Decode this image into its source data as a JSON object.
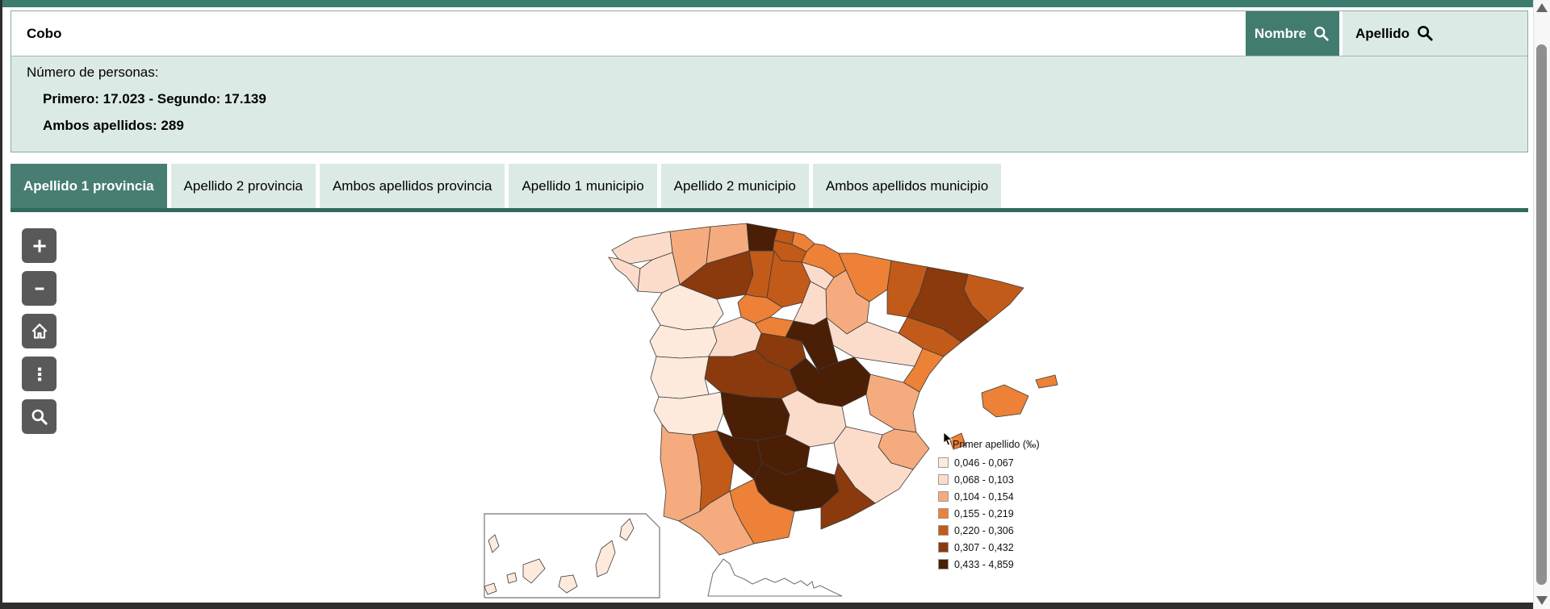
{
  "colors": {
    "accent": "#427c6f",
    "accent_dark": "#2f6a5e",
    "panel_mint": "#dceae6",
    "window_frame": "#2e2e2e",
    "map_control": "#595959"
  },
  "search": {
    "input_value": "Cobo",
    "nombre_label": "Nombre",
    "apellido_label": "Apellido"
  },
  "stats": {
    "title": "Número de personas:",
    "primero_segundo": "Primero: 17.023 - Segundo: 17.139",
    "ambos": "Ambos apellidos: 289"
  },
  "tabs": [
    {
      "label": "Apellido 1 provincia",
      "active": true
    },
    {
      "label": "Apellido 2 provincia",
      "active": false
    },
    {
      "label": "Ambos apellidos provincia",
      "active": false
    },
    {
      "label": "Apellido 1 municipio",
      "active": false
    },
    {
      "label": "Apellido 2 municipio",
      "active": false
    },
    {
      "label": "Ambos apellidos municipio",
      "active": false
    }
  ],
  "map": {
    "controls": [
      {
        "name": "zoom-in",
        "icon": "plus-icon"
      },
      {
        "name": "zoom-out",
        "icon": "minus-icon"
      },
      {
        "name": "home",
        "icon": "home-icon"
      },
      {
        "name": "layers-menu",
        "icon": "kebab-menu-icon"
      },
      {
        "name": "zoom-search",
        "icon": "magnifier-icon"
      }
    ],
    "legend": {
      "title": "Primer apellido (‰)",
      "classes": [
        {
          "range": "0,046 - 0,067",
          "color": "#fdeadd"
        },
        {
          "range": "0,068 - 0,103",
          "color": "#fbdccb"
        },
        {
          "range": "0,104 - 0,154",
          "color": "#f5ab7e"
        },
        {
          "range": "0,155 - 0,219",
          "color": "#ec8137"
        },
        {
          "range": "0,220 - 0,306",
          "color": "#c25a19"
        },
        {
          "range": "0,307 - 0,432",
          "color": "#8a3a0d"
        },
        {
          "range": "0,433 - 4,859",
          "color": "#4a1f06"
        }
      ]
    },
    "provinces": [
      {
        "name": "a-coruna",
        "class": 2
      },
      {
        "name": "lugo",
        "class": 3
      },
      {
        "name": "pontevedra",
        "class": 2
      },
      {
        "name": "ourense",
        "class": 2
      },
      {
        "name": "asturias",
        "class": 3
      },
      {
        "name": "cantabria",
        "class": 7
      },
      {
        "name": "vizcaya",
        "class": 5
      },
      {
        "name": "guipuzcoa",
        "class": 4
      },
      {
        "name": "alava",
        "class": 5
      },
      {
        "name": "leon",
        "class": 6
      },
      {
        "name": "palencia",
        "class": 5
      },
      {
        "name": "burgos",
        "class": 5
      },
      {
        "name": "la-rioja",
        "class": 2
      },
      {
        "name": "navarra",
        "class": 4
      },
      {
        "name": "huesca",
        "class": 4
      },
      {
        "name": "zaragoza",
        "class": 3
      },
      {
        "name": "lleida",
        "class": 5
      },
      {
        "name": "girona",
        "class": 5
      },
      {
        "name": "barcelona",
        "class": 6
      },
      {
        "name": "tarragona",
        "class": 5
      },
      {
        "name": "teruel",
        "class": 2
      },
      {
        "name": "castellon",
        "class": 4
      },
      {
        "name": "soria",
        "class": 2
      },
      {
        "name": "segovia",
        "class": 4
      },
      {
        "name": "valladolid",
        "class": 4
      },
      {
        "name": "zamora",
        "class": 1
      },
      {
        "name": "salamanca",
        "class": 1
      },
      {
        "name": "avila",
        "class": 2
      },
      {
        "name": "madrid",
        "class": 6
      },
      {
        "name": "guadalajara",
        "class": 7
      },
      {
        "name": "cuenca",
        "class": 7
      },
      {
        "name": "toledo",
        "class": 6
      },
      {
        "name": "caceres",
        "class": 1
      },
      {
        "name": "badajoz",
        "class": 1
      },
      {
        "name": "ciudad-real",
        "class": 7
      },
      {
        "name": "albacete",
        "class": 2
      },
      {
        "name": "valencia",
        "class": 3
      },
      {
        "name": "alicante",
        "class": 3
      },
      {
        "name": "murcia",
        "class": 2
      },
      {
        "name": "huelva",
        "class": 3
      },
      {
        "name": "sevilla",
        "class": 5
      },
      {
        "name": "cordoba",
        "class": 7
      },
      {
        "name": "jaen",
        "class": 7
      },
      {
        "name": "granada",
        "class": 7
      },
      {
        "name": "almeria",
        "class": 6
      },
      {
        "name": "malaga",
        "class": 4
      },
      {
        "name": "cadiz",
        "class": 3
      },
      {
        "name": "mallorca",
        "class": 4
      },
      {
        "name": "menorca",
        "class": 4
      },
      {
        "name": "ibiza",
        "class": 4
      },
      {
        "name": "la-palma",
        "class": 1
      },
      {
        "name": "el-hierro",
        "class": 1
      },
      {
        "name": "la-gomera",
        "class": 1
      },
      {
        "name": "tenerife",
        "class": 1
      },
      {
        "name": "gran-canaria",
        "class": 1
      },
      {
        "name": "fuerteventura",
        "class": 1
      },
      {
        "name": "lanzarote",
        "class": 1
      }
    ]
  }
}
